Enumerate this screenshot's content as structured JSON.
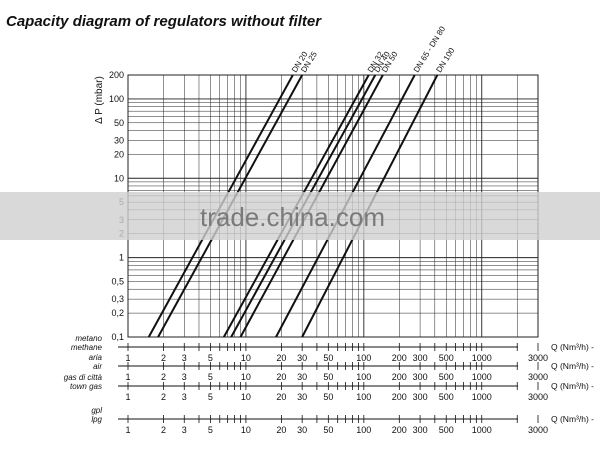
{
  "chart_data": {
    "type": "line",
    "title": "Capacity diagram of regulators without filter",
    "ylabel": "Δ P (mbar)",
    "x_scale": "log",
    "y_scale": "log",
    "xlim": [
      1,
      3000
    ],
    "ylim": [
      0.1,
      200
    ],
    "grid": true,
    "yticks": [
      {
        "v": 200,
        "t": "200"
      },
      {
        "v": 100,
        "t": "100"
      },
      {
        "v": 50,
        "t": "50"
      },
      {
        "v": 30,
        "t": "30"
      },
      {
        "v": 20,
        "t": "20"
      },
      {
        "v": 10,
        "t": "10"
      },
      {
        "v": 5,
        "t": "5"
      },
      {
        "v": 3,
        "t": "3"
      },
      {
        "v": 2,
        "t": "2"
      },
      {
        "v": 1,
        "t": "1"
      },
      {
        "v": 0.5,
        "t": "0,5"
      },
      {
        "v": 0.3,
        "t": "0,3"
      },
      {
        "v": 0.2,
        "t": "0,2"
      },
      {
        "v": 0.1,
        "t": "0,1"
      }
    ],
    "series": [
      {
        "name": "DN 20",
        "x": [
          1.5,
          25
        ],
        "y": [
          0.1,
          200
        ]
      },
      {
        "name": "DN 25",
        "x": [
          1.8,
          30
        ],
        "y": [
          0.1,
          200
        ]
      },
      {
        "name": "DN 32",
        "x": [
          6.5,
          110
        ],
        "y": [
          0.1,
          200
        ]
      },
      {
        "name": "DN 40",
        "x": [
          7.5,
          125
        ],
        "y": [
          0.1,
          200
        ]
      },
      {
        "name": "DN 50",
        "x": [
          9,
          145
        ],
        "y": [
          0.1,
          200
        ]
      },
      {
        "name": "DN 65 - DN 80",
        "x": [
          18,
          270
        ],
        "y": [
          0.1,
          200
        ]
      },
      {
        "name": "DN 100",
        "x": [
          30,
          420
        ],
        "y": [
          0.1,
          200
        ]
      }
    ],
    "gas_scales": [
      {
        "label": [
          "metano",
          "methane"
        ],
        "unit": "Q (Nm³/h) -",
        "ticks": [
          {
            "v": 1,
            "t": "1"
          },
          {
            "v": 2,
            "t": "2"
          },
          {
            "v": 3,
            "t": "3"
          },
          {
            "v": 5,
            "t": "5"
          },
          {
            "v": 10,
            "t": "10"
          },
          {
            "v": 20,
            "t": "20"
          },
          {
            "v": 30,
            "t": "30"
          },
          {
            "v": 50,
            "t": "50"
          },
          {
            "v": 100,
            "t": "100"
          },
          {
            "v": 200,
            "t": "200"
          },
          {
            "v": 300,
            "t": "300"
          },
          {
            "v": 500,
            "t": "500"
          },
          {
            "v": 1000,
            "t": "1000"
          },
          {
            "v": 3000,
            "t": "3000"
          }
        ]
      },
      {
        "label": [
          "aria",
          "air"
        ],
        "unit": "Q (Nm³/h) -",
        "ticks": [
          {
            "v": 1,
            "t": "1"
          },
          {
            "v": 2,
            "t": "2"
          },
          {
            "v": 3,
            "t": "3"
          },
          {
            "v": 5,
            "t": "5"
          },
          {
            "v": 10,
            "t": "10"
          },
          {
            "v": 20,
            "t": "20"
          },
          {
            "v": 30,
            "t": "30"
          },
          {
            "v": 50,
            "t": "50"
          },
          {
            "v": 100,
            "t": "100"
          },
          {
            "v": 200,
            "t": "200"
          },
          {
            "v": 300,
            "t": "300"
          },
          {
            "v": 500,
            "t": "500"
          },
          {
            "v": 1000,
            "t": "1000"
          },
          {
            "v": 3000,
            "t": "3000"
          }
        ]
      },
      {
        "label": [
          "gas di città",
          "town gas"
        ],
        "unit": "Q (Nm³/h) -",
        "ticks": [
          {
            "v": 1,
            "t": "1"
          },
          {
            "v": 2,
            "t": "2"
          },
          {
            "v": 3,
            "t": "3"
          },
          {
            "v": 5,
            "t": "5"
          },
          {
            "v": 10,
            "t": "10"
          },
          {
            "v": 20,
            "t": "20"
          },
          {
            "v": 30,
            "t": "30"
          },
          {
            "v": 50,
            "t": "50"
          },
          {
            "v": 100,
            "t": "100"
          },
          {
            "v": 200,
            "t": "200"
          },
          {
            "v": 300,
            "t": "300"
          },
          {
            "v": 500,
            "t": "500"
          },
          {
            "v": 1000,
            "t": "1000"
          },
          {
            "v": 3000,
            "t": "3000"
          }
        ]
      },
      {
        "label": [
          "gpl",
          "lpg"
        ],
        "unit": "Q (Nm³/h) -",
        "ticks": [
          {
            "v": 1,
            "t": "1"
          },
          {
            "v": 2,
            "t": "2"
          },
          {
            "v": 3,
            "t": "3"
          },
          {
            "v": 5,
            "t": "5"
          },
          {
            "v": 10,
            "t": "10"
          },
          {
            "v": 20,
            "t": "20"
          },
          {
            "v": 30,
            "t": "30"
          },
          {
            "v": 50,
            "t": "50"
          },
          {
            "v": 100,
            "t": "100"
          },
          {
            "v": 200,
            "t": "200"
          },
          {
            "v": 300,
            "t": "300"
          },
          {
            "v": 500,
            "t": "500"
          },
          {
            "v": 1000,
            "t": "1000"
          },
          {
            "v": 3000,
            "t": "3000"
          }
        ]
      }
    ]
  },
  "watermark": "trade.china.com",
  "colors": {
    "line": "#111111",
    "grid": "#222222",
    "band": "#d0d0d0"
  }
}
